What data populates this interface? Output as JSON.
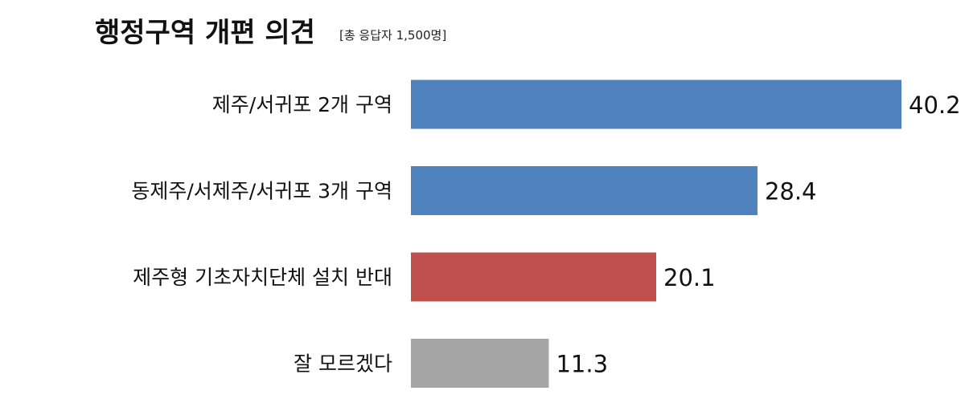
{
  "chart_data": {
    "type": "bar",
    "orientation": "horizontal",
    "title": "행정구역 개편 의견",
    "subtitle": "[총 응답자 1,500명]",
    "categories": [
      "제주/서귀포 2개 구역",
      "동제주/서제주/서귀포 3개 구역",
      "제주형 기초자치단체 설치 반대",
      "잘 모르겠다"
    ],
    "values": [
      40.2,
      28.4,
      20.1,
      11.3
    ],
    "value_labels": [
      "40.2",
      "28.4",
      "20.1",
      "11.3"
    ],
    "colors": [
      "#4f81bd",
      "#4f81bd",
      "#c0504d",
      "#a6a6a6"
    ],
    "xlim": [
      0,
      40.2
    ],
    "grid": false,
    "legend": "none"
  }
}
